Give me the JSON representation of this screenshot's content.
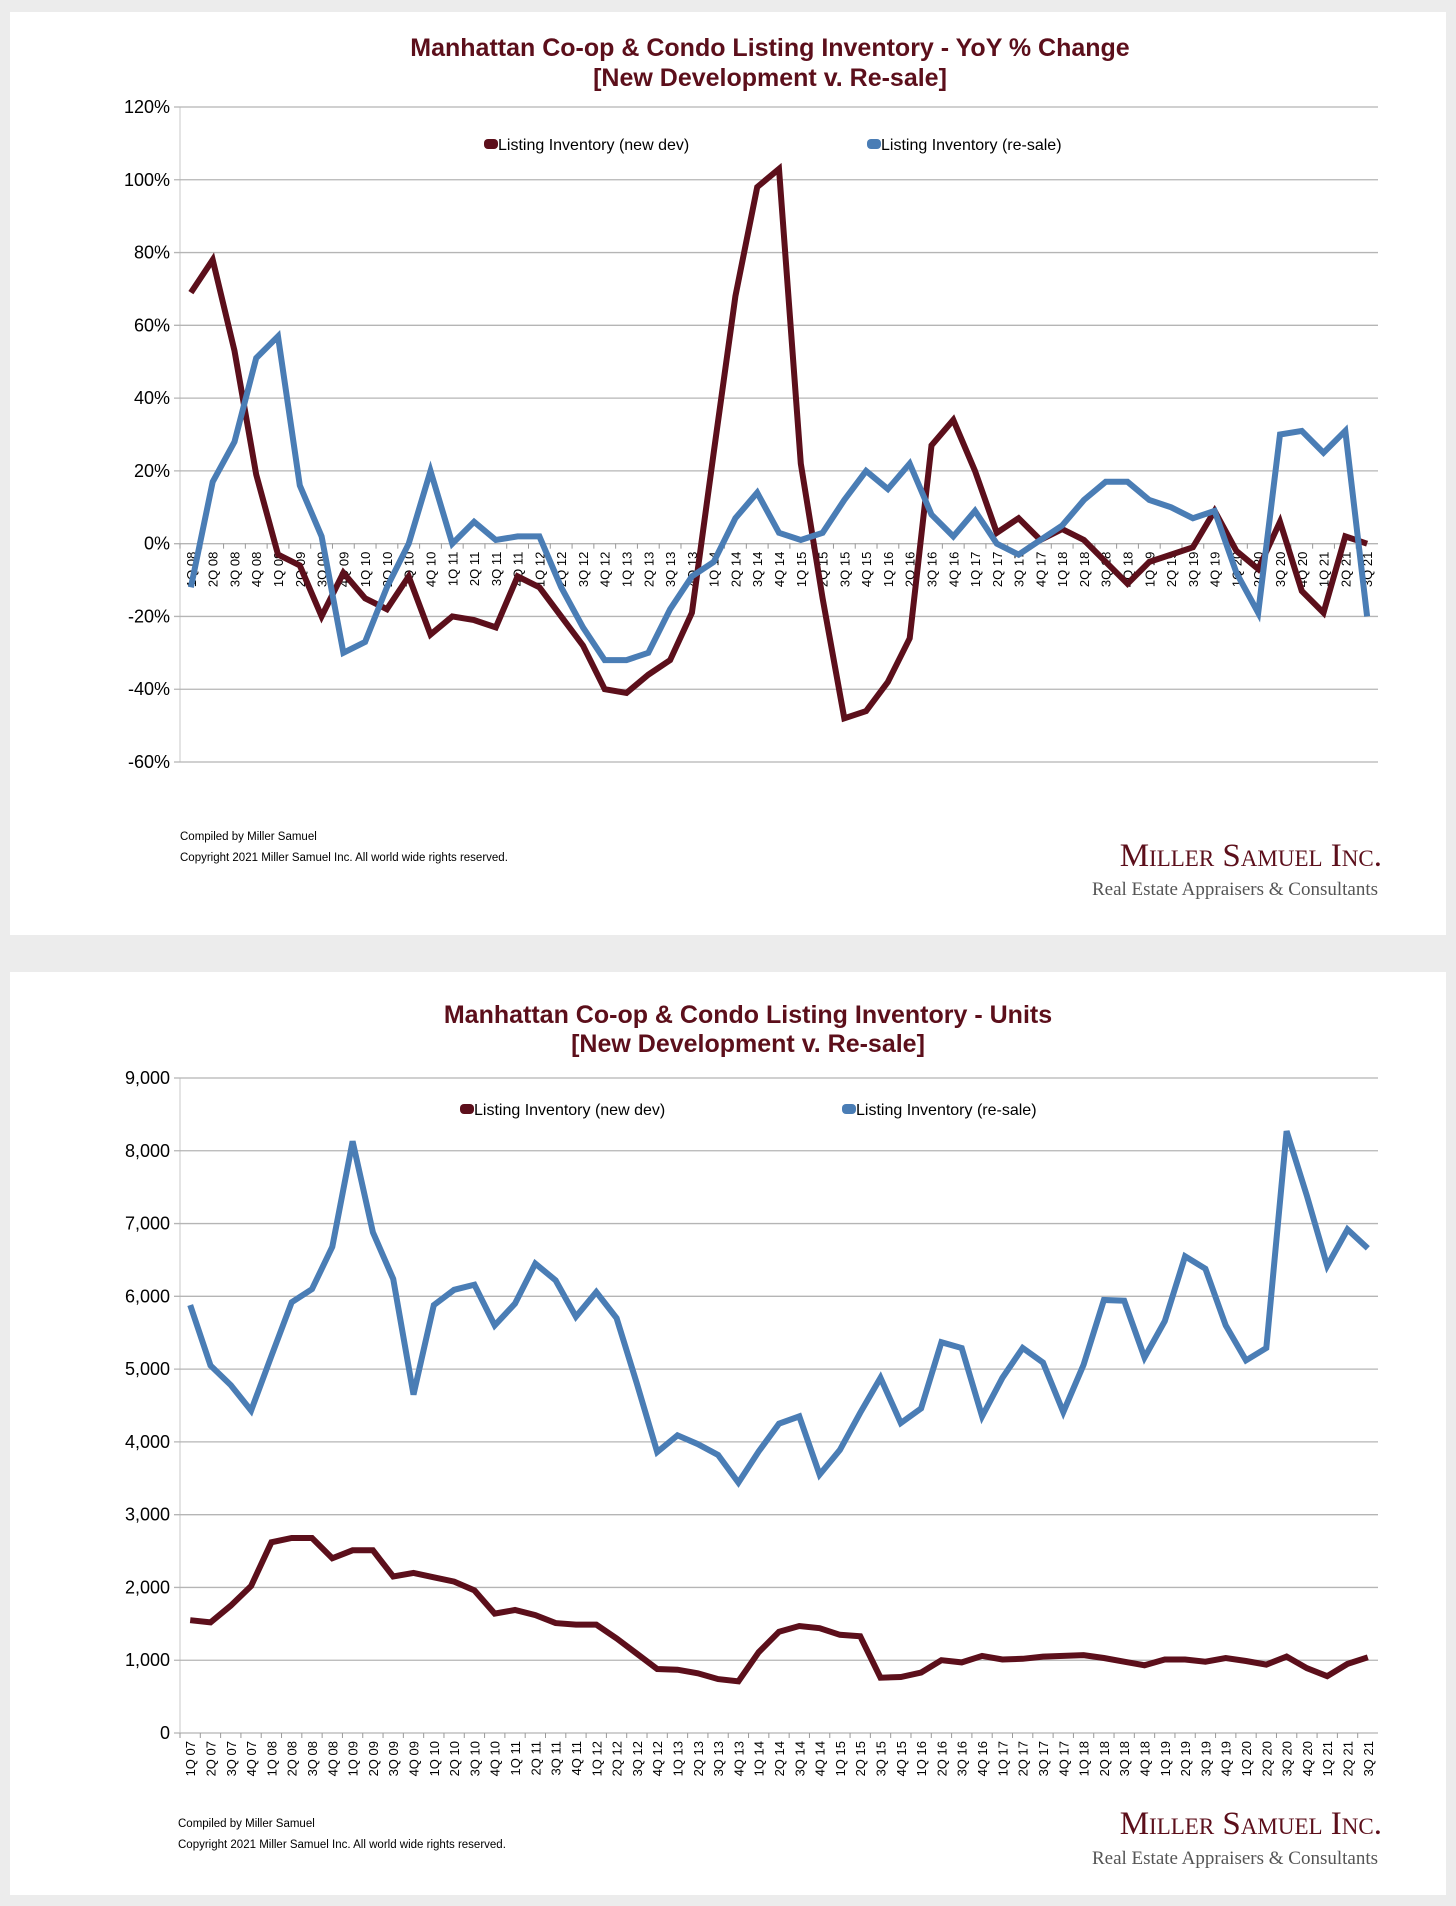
{
  "colors": {
    "new_dev": "#5c0f1b",
    "resale": "#4a7db5",
    "grid": "#b5b5b5"
  },
  "footer": {
    "compiled": "Compiled by Miller Samuel",
    "copyright": "Copyright 2021 Miller Samuel Inc.  All world wide rights reserved.",
    "logo_name": "Miller Samuel Inc.",
    "logo_tagline": "Real Estate Appraisers & Consultants"
  },
  "chart_data": [
    {
      "type": "line",
      "title": "Manhattan Co-op & Condo Listing Inventory - YoY % Change",
      "subtitle": "[New Development v. Re-sale]",
      "xlabel": "",
      "ylabel": "",
      "ylim": [
        -60,
        120
      ],
      "yticks": [
        120,
        100,
        80,
        60,
        40,
        20,
        0,
        -20,
        -40,
        -60
      ],
      "ytick_labels": [
        "120%",
        "100%",
        "80%",
        "60%",
        "40%",
        "20%",
        "0%",
        "-20%",
        "-40%",
        "-60%"
      ],
      "grid": true,
      "legend_position": "top-center",
      "categories": [
        "1Q 08",
        "2Q 08",
        "3Q 08",
        "4Q 08",
        "1Q 09",
        "2Q 09",
        "3Q 09",
        "4Q 09",
        "1Q 10",
        "2Q 10",
        "3Q 10",
        "4Q 10",
        "1Q 11",
        "2Q 11",
        "3Q 11",
        "4Q 11",
        "1Q 12",
        "2Q 12",
        "3Q 12",
        "4Q 12",
        "1Q 13",
        "2Q 13",
        "3Q 13",
        "4Q 13",
        "1Q 14",
        "2Q 14",
        "3Q 14",
        "4Q 14",
        "1Q 15",
        "2Q 15",
        "3Q 15",
        "4Q 15",
        "1Q 16",
        "2Q 16",
        "3Q 16",
        "4Q 16",
        "1Q 17",
        "2Q 17",
        "3Q 17",
        "4Q 17",
        "1Q 18",
        "2Q 18",
        "3Q 18",
        "4Q 18",
        "1Q 19",
        "2Q 19",
        "3Q 19",
        "4Q 19",
        "1Q 20",
        "2Q 20",
        "3Q 20",
        "4Q 20",
        "1Q 21",
        "2Q 21",
        "3Q 21"
      ],
      "series": [
        {
          "name": "Listing Inventory (new dev)",
          "values": [
            69,
            78,
            53,
            19,
            -3,
            -6,
            -20,
            -8,
            -15,
            -18,
            -9,
            -25,
            -20,
            -21,
            -23,
            -9,
            -12,
            -20,
            -28,
            -40,
            -41,
            -36,
            -32,
            -19,
            25,
            68,
            98,
            103,
            22,
            -15,
            -48,
            -46,
            -38,
            -26,
            27,
            34,
            20,
            3,
            7,
            1,
            4,
            1,
            -5,
            -11,
            -5,
            -3,
            -1,
            9,
            -2,
            -7,
            6,
            -13,
            -19,
            2,
            0
          ]
        },
        {
          "name": "Listing Inventory (re-sale)",
          "values": [
            -12,
            17,
            28,
            51,
            57,
            16,
            2,
            -30,
            -27,
            -12,
            0,
            20,
            0,
            6,
            1,
            2,
            2,
            -12,
            -23,
            -32,
            -32,
            -30,
            -18,
            -9,
            -5,
            7,
            14,
            3,
            1,
            3,
            12,
            20,
            15,
            22,
            8,
            2,
            9,
            0,
            -3,
            1,
            5,
            12,
            17,
            17,
            12,
            10,
            7,
            9,
            -8,
            -19,
            30,
            31,
            25,
            31,
            -20
          ]
        }
      ]
    },
    {
      "type": "line",
      "title": "Manhattan Co-op & Condo Listing Inventory - Units",
      "subtitle": "[New Development v. Re-sale]",
      "xlabel": "",
      "ylabel": "",
      "ylim": [
        0,
        9000
      ],
      "yticks": [
        9000,
        8000,
        7000,
        6000,
        5000,
        4000,
        3000,
        2000,
        1000,
        0
      ],
      "ytick_labels": [
        "9,000",
        "8,000",
        "7,000",
        "6,000",
        "5,000",
        "4,000",
        "3,000",
        "2,000",
        "1,000",
        "0"
      ],
      "grid": true,
      "legend_position": "top-center",
      "categories": [
        "1Q 07",
        "2Q 07",
        "3Q 07",
        "4Q 07",
        "1Q 08",
        "2Q 08",
        "3Q 08",
        "4Q 08",
        "1Q 09",
        "2Q 09",
        "3Q 09",
        "4Q 09",
        "1Q 10",
        "2Q 10",
        "3Q 10",
        "4Q 10",
        "1Q 11",
        "2Q 11",
        "3Q 11",
        "4Q 11",
        "1Q 12",
        "2Q 12",
        "3Q 12",
        "4Q 12",
        "1Q 13",
        "2Q 13",
        "3Q 13",
        "4Q 13",
        "1Q 14",
        "2Q 14",
        "3Q 14",
        "4Q 14",
        "1Q 15",
        "2Q 15",
        "3Q 15",
        "4Q 15",
        "1Q 16",
        "2Q 16",
        "3Q 16",
        "4Q 16",
        "1Q 17",
        "2Q 17",
        "3Q 17",
        "4Q 17",
        "1Q 18",
        "2Q 18",
        "3Q 18",
        "4Q 18",
        "1Q 19",
        "2Q 19",
        "3Q 19",
        "4Q 19",
        "1Q 20",
        "2Q 20",
        "3Q 20",
        "4Q 20",
        "1Q 21",
        "2Q 21",
        "3Q 21"
      ],
      "series": [
        {
          "name": "Listing Inventory (new dev)",
          "values": [
            1550,
            1520,
            1750,
            2020,
            2620,
            2680,
            2680,
            2400,
            2510,
            2510,
            2150,
            2200,
            2140,
            2080,
            1960,
            1640,
            1690,
            1620,
            1510,
            1490,
            1490,
            1300,
            1090,
            880,
            870,
            820,
            740,
            710,
            1110,
            1390,
            1470,
            1440,
            1350,
            1330,
            760,
            770,
            830,
            1000,
            970,
            1060,
            1010,
            1020,
            1050,
            1060,
            1070,
            1030,
            980,
            930,
            1010,
            1010,
            980,
            1030,
            990,
            940,
            1050,
            890,
            780,
            950,
            1040
          ]
        },
        {
          "name": "Listing Inventory (re-sale)",
          "values": [
            5880,
            5050,
            4780,
            4430,
            5180,
            5920,
            6100,
            6680,
            8130,
            6880,
            6240,
            4650,
            5880,
            6090,
            6160,
            5600,
            5900,
            6450,
            6220,
            5720,
            6060,
            5700,
            4800,
            3860,
            4090,
            3970,
            3820,
            3440,
            3870,
            4250,
            4350,
            3550,
            3890,
            4400,
            4880,
            4260,
            4460,
            5370,
            5290,
            4350,
            4880,
            5290,
            5090,
            4410,
            5060,
            5950,
            5940,
            5160,
            5660,
            6550,
            6380,
            5600,
            5120,
            5290,
            8270,
            7380,
            6420,
            6920,
            6660
          ]
        }
      ]
    }
  ]
}
